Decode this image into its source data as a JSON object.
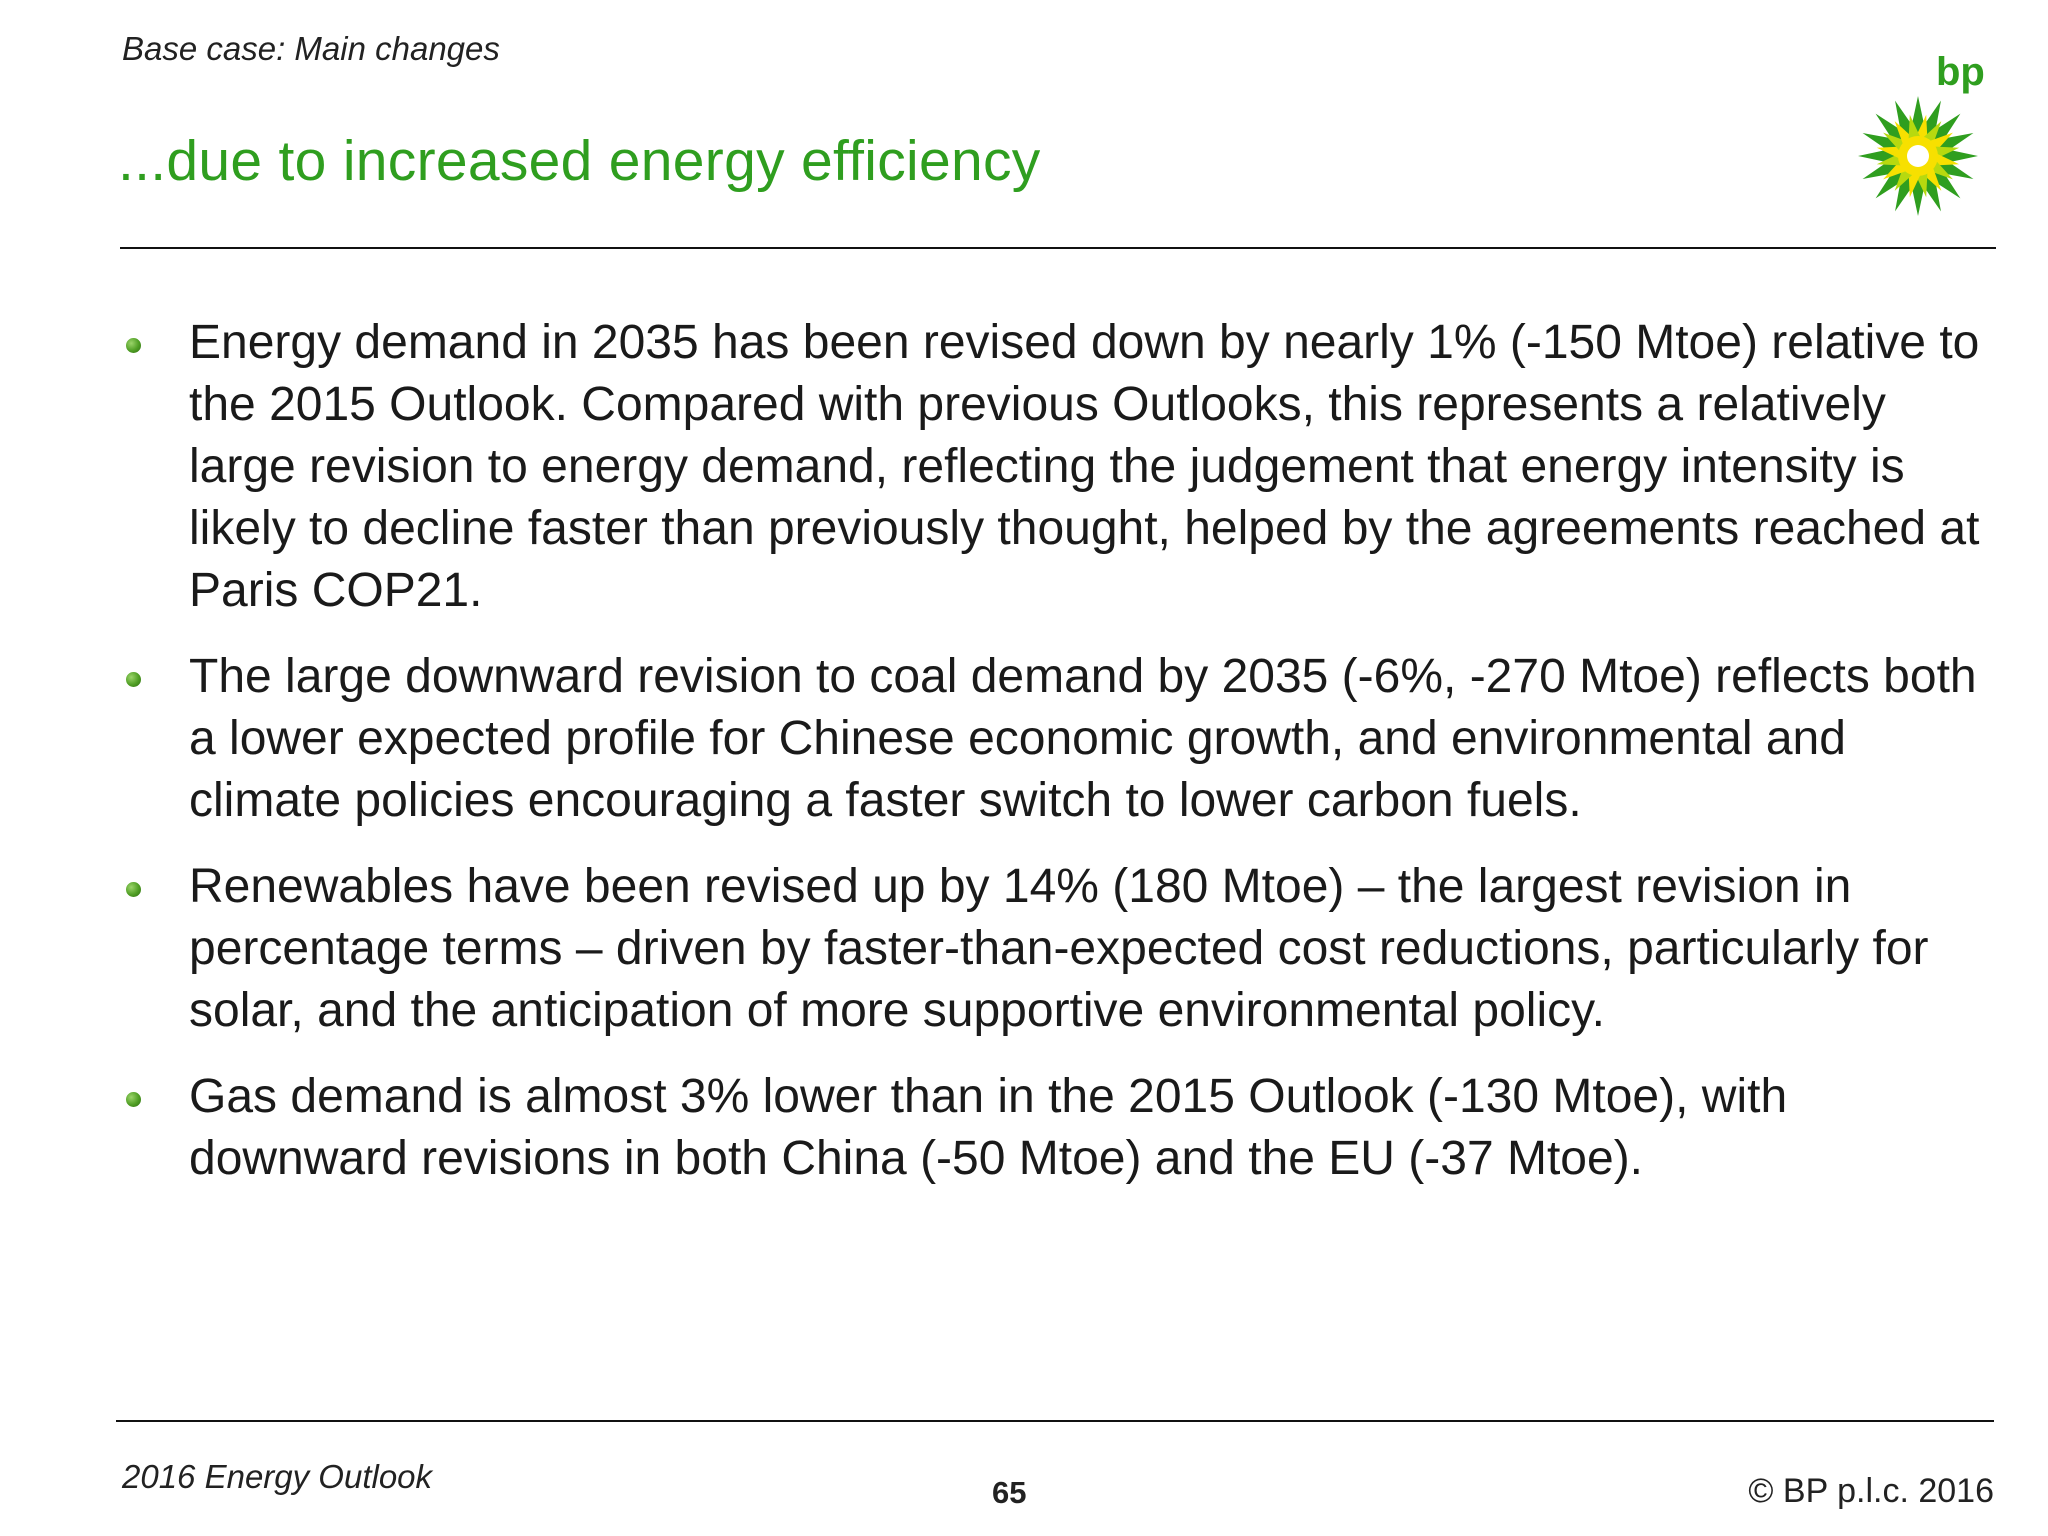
{
  "header": {
    "section_label": "Base case: Main changes",
    "title": "...due to increased energy efficiency",
    "logo": {
      "text": "bp",
      "icon": "helios-sunflower-icon",
      "colors": {
        "green": "#2f9e1f",
        "yellow": "#f7e000",
        "white": "#ffffff"
      }
    }
  },
  "bullets": [
    {
      "text": "Energy demand in 2035 has been revised down by nearly 1% (-150 Mtoe) relative to the 2015 Outlook. Compared with previous Outlooks, this represents a relatively large revision to energy demand, reflecting the judgement that energy intensity is likely to decline faster than previously thought, helped by the agreements reached at Paris COP21."
    },
    {
      "text": "The large downward revision to coal demand by 2035 (-6%, -270 Mtoe) reflects both a lower expected profile for Chinese economic growth, and environmental and climate policies encouraging a faster switch to lower carbon fuels."
    },
    {
      "text": "Renewables have been revised up by 14% (180 Mtoe) – the largest revision in percentage terms – driven by faster-than-expected cost reductions, particularly for solar, and the anticipation of more supportive environmental policy."
    },
    {
      "text": "Gas demand is almost 3% lower than in the 2015 Outlook (-130 Mtoe), with downward revisions in both China (-50 Mtoe) and the EU (-37 Mtoe)."
    }
  ],
  "footer": {
    "left": "2016 Energy Outlook",
    "page_number": "65",
    "right": "© BP p.l.c. 2016"
  },
  "colors": {
    "title_green": "#2f9e1f",
    "bullet_green": "#4f9e24",
    "text": "#1a1a1a"
  }
}
